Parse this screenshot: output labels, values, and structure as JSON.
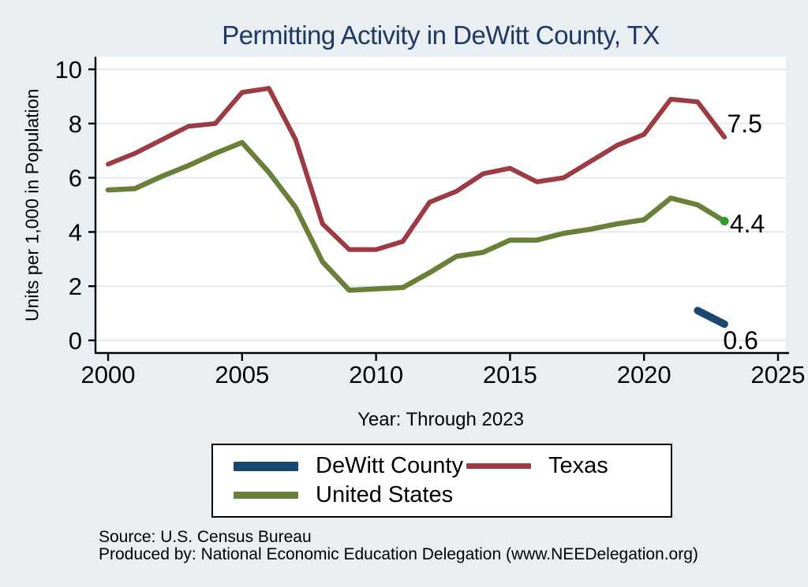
{
  "title": "Permitting Activity in DeWitt County, TX",
  "axes": {
    "y_label": "Units per 1,000 in Population",
    "x_label": "Year: Through 2023"
  },
  "legend": {
    "items": [
      {
        "label": "DeWitt County",
        "color": "#1a476f",
        "thickness": 12
      },
      {
        "label": "Texas",
        "color": "#9d3b42",
        "thickness": 7
      },
      {
        "label": "United States",
        "color": "#6a8038",
        "thickness": 9
      }
    ]
  },
  "footer": {
    "line1": "Source: U.S. Census Bureau",
    "line2": "Produced by: National Economic Education Delegation (www.NEEDelegation.org)"
  },
  "colors": {
    "background": "#e8eef2",
    "plot_background": "#ffffff",
    "gridline": "#e1eaf1",
    "axis": "#000000",
    "title": "#1f3864",
    "dewitt_county": "#1a476f",
    "texas": "#9d3b42",
    "united_states": "#6a8038",
    "us_end_marker": "#2f9e2f"
  },
  "chart_data": {
    "type": "line",
    "title": "Permitting Activity in DeWitt County, TX",
    "xlabel": "Year: Through 2023",
    "ylabel": "Units per 1,000 in Population",
    "xlim": [
      1999.5,
      2025.5
    ],
    "ylim": [
      -0.5,
      10.5
    ],
    "x_ticks": [
      2000,
      2005,
      2010,
      2015,
      2020,
      2025
    ],
    "y_ticks": [
      0,
      2,
      4,
      6,
      8,
      10
    ],
    "grid": true,
    "legend_position": "bottom",
    "series": [
      {
        "name": "Texas",
        "color": "#9d3b42",
        "width": 6,
        "x": [
          2000,
          2001,
          2002,
          2003,
          2004,
          2005,
          2006,
          2007,
          2008,
          2009,
          2010,
          2011,
          2012,
          2013,
          2014,
          2015,
          2016,
          2017,
          2018,
          2019,
          2020,
          2021,
          2022,
          2023
        ],
        "values": [
          6.5,
          6.9,
          7.4,
          7.9,
          8.0,
          9.15,
          9.3,
          7.4,
          4.3,
          3.35,
          3.35,
          3.65,
          5.1,
          5.5,
          6.15,
          6.35,
          5.85,
          6.0,
          6.6,
          7.2,
          7.6,
          8.9,
          8.8,
          7.5
        ]
      },
      {
        "name": "United States",
        "color": "#6a8038",
        "width": 6.5,
        "end_marker": true,
        "x": [
          2000,
          2001,
          2002,
          2003,
          2004,
          2005,
          2006,
          2007,
          2008,
          2009,
          2010,
          2011,
          2012,
          2013,
          2014,
          2015,
          2016,
          2017,
          2018,
          2019,
          2020,
          2021,
          2022,
          2023
        ],
        "values": [
          5.55,
          5.6,
          6.05,
          6.45,
          6.9,
          7.3,
          6.2,
          4.9,
          2.9,
          1.85,
          1.9,
          1.95,
          2.5,
          3.1,
          3.25,
          3.7,
          3.7,
          3.95,
          4.1,
          4.3,
          4.45,
          5.25,
          5.0,
          4.4
        ]
      },
      {
        "name": "DeWitt County",
        "color": "#1a476f",
        "width": 9.5,
        "x": [
          2022,
          2023
        ],
        "values": [
          1.1,
          0.6
        ]
      }
    ],
    "end_labels": [
      {
        "text": "7.5",
        "year": 2023.1,
        "value": 8.0
      },
      {
        "text": "4.4",
        "year": 2023.2,
        "value": 4.3
      },
      {
        "text": "0.6",
        "year": 2022.95,
        "value": 0.0
      }
    ]
  }
}
